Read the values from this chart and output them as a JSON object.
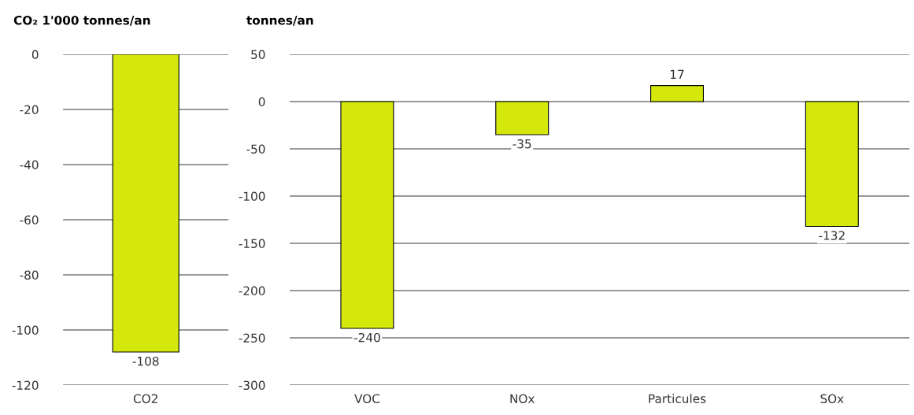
{
  "chart_data": [
    {
      "type": "bar",
      "ylabel": "CO₂ 1'000 tonnes/an",
      "categories": [
        "CO2"
      ],
      "values": [
        -108
      ],
      "color": "#d4e80c",
      "ylim": [
        -120,
        0
      ],
      "yticks": [
        -120,
        -100,
        -80,
        -60,
        -40,
        -20,
        0
      ],
      "grid": "y",
      "data_labels": true
    },
    {
      "type": "bar",
      "ylabel": "tonnes/an",
      "categories": [
        "VOC",
        "NOx",
        "Particules",
        "SOx"
      ],
      "values": [
        -240,
        -35,
        17,
        -132
      ],
      "color": "#d4e80c",
      "ylim": [
        -300,
        50
      ],
      "yticks": [
        -300,
        -250,
        -200,
        -150,
        -100,
        -50,
        0,
        50
      ],
      "grid": "y",
      "data_labels": true
    }
  ]
}
